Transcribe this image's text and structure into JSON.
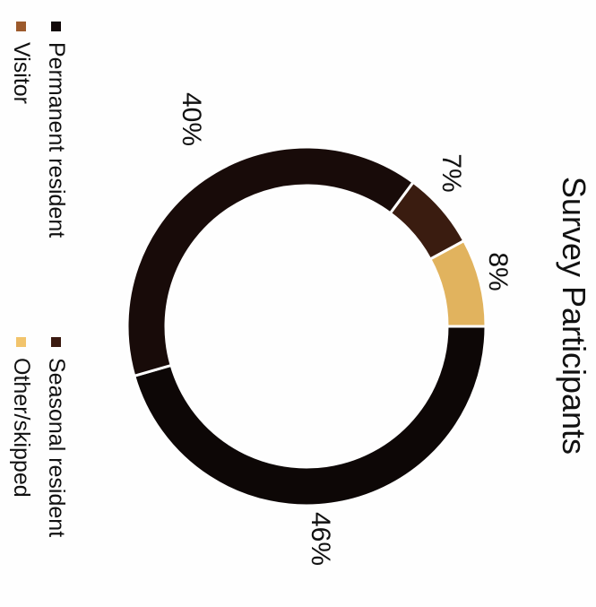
{
  "chart_data": {
    "type": "pie",
    "donut": true,
    "title": "Survey Participants",
    "slices": [
      {
        "label": "Seasonal resident",
        "value": 46,
        "label_text": "46%",
        "color": "#0d0706"
      },
      {
        "label": "Permanent resident",
        "value": 40,
        "label_text": "40%",
        "color": "#180b09"
      },
      {
        "label": "Visitor",
        "value": 7,
        "label_text": "7%",
        "color": "#3a1c10"
      },
      {
        "label": "Other/skipped",
        "value": 8,
        "label_text": "8%",
        "color": "#e1b35e"
      }
    ],
    "legend": [
      {
        "label": "Permanent resident",
        "color": "#120909"
      },
      {
        "label": "Visitor",
        "color": "#9c5a2c"
      },
      {
        "label": "Seasonal resident",
        "color": "#3a1a10"
      },
      {
        "label": "Other/skipped",
        "color": "#f2c46c"
      }
    ],
    "legend_position": "left (rotated 90°)",
    "separator_color": "#ffffff"
  }
}
